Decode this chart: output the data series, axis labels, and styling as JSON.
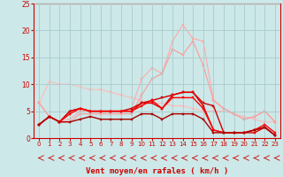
{
  "title": "",
  "xlabel": "Vent moyen/en rafales ( km/h )",
  "bg_color": "#cce8e8",
  "grid_color": "#aacccc",
  "xlim": [
    -0.5,
    23.5
  ],
  "ylim": [
    0,
    25
  ],
  "xticks": [
    0,
    1,
    2,
    3,
    4,
    5,
    6,
    7,
    8,
    9,
    10,
    11,
    12,
    13,
    14,
    15,
    16,
    17,
    18,
    19,
    20,
    21,
    22,
    23
  ],
  "yticks": [
    0,
    5,
    10,
    15,
    20,
    25
  ],
  "series": [
    {
      "x": [
        0,
        1,
        2,
        3,
        4,
        5,
        6,
        7,
        8,
        9,
        10,
        11,
        12,
        13,
        14,
        15,
        16,
        17,
        18,
        19,
        20,
        21,
        22,
        23
      ],
      "y": [
        6.5,
        10.5,
        10.0,
        10.0,
        9.5,
        9.0,
        9.0,
        8.5,
        8.0,
        7.5,
        7.0,
        6.5,
        6.5,
        6.0,
        6.0,
        5.5,
        5.0,
        5.0,
        5.0,
        4.5,
        4.0,
        3.5,
        3.0,
        3.0
      ],
      "color": "#ffbbbb",
      "lw": 0.8,
      "marker": "s",
      "ms": 2.0,
      "zorder": 2
    },
    {
      "x": [
        0,
        1,
        2,
        3,
        4,
        5,
        6,
        7,
        8,
        9,
        10,
        11,
        12,
        13,
        14,
        15,
        16,
        17,
        18,
        19,
        20,
        21,
        22,
        23
      ],
      "y": [
        6.5,
        4.0,
        3.0,
        3.5,
        5.0,
        5.0,
        5.0,
        5.0,
        5.0,
        5.5,
        11.0,
        13.0,
        12.0,
        18.0,
        21.0,
        18.5,
        18.0,
        7.0,
        5.5,
        4.5,
        3.5,
        4.0,
        5.0,
        3.0
      ],
      "color": "#ffaaaa",
      "lw": 0.8,
      "marker": "s",
      "ms": 2.0,
      "zorder": 2
    },
    {
      "x": [
        0,
        1,
        2,
        3,
        4,
        5,
        6,
        7,
        8,
        9,
        10,
        11,
        12,
        13,
        14,
        15,
        16,
        17,
        18,
        19,
        20,
        21,
        22,
        23
      ],
      "y": [
        6.5,
        4.0,
        3.0,
        3.0,
        4.5,
        4.5,
        4.5,
        4.5,
        4.5,
        4.5,
        8.0,
        11.0,
        12.0,
        16.5,
        15.5,
        18.0,
        13.5,
        7.0,
        5.5,
        4.5,
        3.5,
        4.0,
        5.0,
        3.0
      ],
      "color": "#ff9999",
      "lw": 0.8,
      "marker": "s",
      "ms": 2.0,
      "zorder": 2
    },
    {
      "x": [
        0,
        1,
        2,
        3,
        4,
        5,
        6,
        7,
        8,
        9,
        10,
        11,
        12,
        13,
        14,
        15,
        16,
        17,
        18,
        19,
        20,
        21,
        22,
        23
      ],
      "y": [
        2.5,
        4.0,
        3.0,
        5.0,
        5.5,
        5.0,
        5.0,
        5.0,
        5.0,
        5.5,
        6.5,
        7.0,
        7.5,
        8.0,
        8.5,
        8.5,
        6.5,
        6.0,
        1.0,
        1.0,
        1.0,
        1.5,
        2.0,
        0.5
      ],
      "color": "#cc0000",
      "lw": 1.0,
      "marker": "s",
      "ms": 2.0,
      "zorder": 4
    },
    {
      "x": [
        0,
        1,
        2,
        3,
        4,
        5,
        6,
        7,
        8,
        9,
        10,
        11,
        12,
        13,
        14,
        15,
        16,
        17,
        18,
        19,
        20,
        21,
        22,
        23
      ],
      "y": [
        2.5,
        4.0,
        3.0,
        5.0,
        5.5,
        5.0,
        5.0,
        5.0,
        5.0,
        5.0,
        6.5,
        6.5,
        5.5,
        8.0,
        8.5,
        8.5,
        6.0,
        1.5,
        1.0,
        1.0,
        1.0,
        1.0,
        2.0,
        0.5
      ],
      "color": "#dd0000",
      "lw": 1.0,
      "marker": "s",
      "ms": 2.0,
      "zorder": 4
    },
    {
      "x": [
        0,
        1,
        2,
        3,
        4,
        5,
        6,
        7,
        8,
        9,
        10,
        11,
        12,
        13,
        14,
        15,
        16,
        17,
        18,
        19,
        20,
        21,
        22,
        23
      ],
      "y": [
        2.5,
        4.0,
        3.0,
        4.5,
        5.5,
        5.0,
        5.0,
        5.0,
        5.0,
        5.0,
        6.0,
        7.0,
        5.5,
        7.5,
        7.5,
        7.5,
        5.5,
        1.5,
        1.0,
        1.0,
        1.0,
        1.5,
        2.5,
        1.0
      ],
      "color": "#ff0000",
      "lw": 1.0,
      "marker": "s",
      "ms": 2.0,
      "zorder": 4
    },
    {
      "x": [
        0,
        1,
        2,
        3,
        4,
        5,
        6,
        7,
        8,
        9,
        10,
        11,
        12,
        13,
        14,
        15,
        16,
        17,
        18,
        19,
        20,
        21,
        22,
        23
      ],
      "y": [
        2.5,
        4.0,
        3.0,
        3.0,
        3.5,
        4.0,
        3.5,
        3.5,
        3.5,
        3.5,
        4.5,
        4.5,
        3.5,
        4.5,
        4.5,
        4.5,
        3.5,
        1.0,
        1.0,
        1.0,
        1.0,
        1.5,
        2.0,
        0.5
      ],
      "color": "#aa0000",
      "lw": 1.0,
      "marker": "s",
      "ms": 1.8,
      "zorder": 4
    }
  ],
  "arrow_color": "#cc0000",
  "xlabel_color": "#cc0000",
  "xlabel_fontsize": 6.5,
  "tick_color": "#cc0000",
  "tick_fontsize": 5.0
}
